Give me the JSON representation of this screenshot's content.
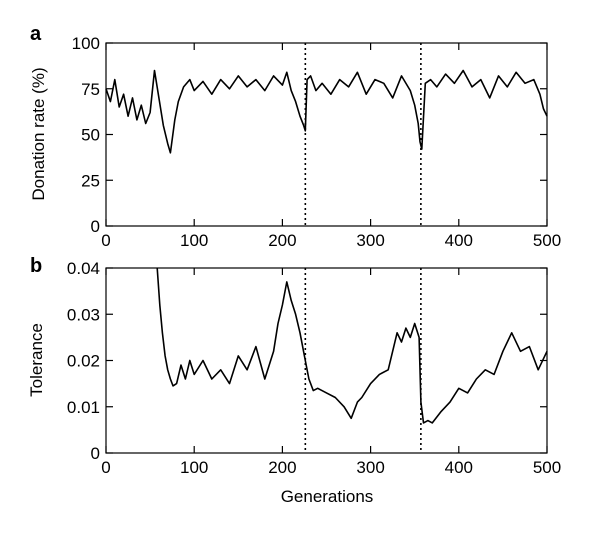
{
  "chart_data": [
    {
      "type": "line",
      "panel": "a",
      "xlabel": "",
      "ylabel": "Donation rate (%)",
      "xlim": [
        0,
        500
      ],
      "ylim": [
        0,
        100
      ],
      "xticks": [
        0,
        100,
        200,
        300,
        400,
        500
      ],
      "yticks": [
        0,
        25,
        50,
        75,
        100
      ],
      "vlines": [
        226,
        357
      ],
      "grid": false,
      "series": [
        {
          "x": [
            0,
            5,
            10,
            15,
            20,
            25,
            30,
            35,
            40,
            45,
            50,
            55,
            60,
            65,
            70,
            73,
            78,
            82,
            88,
            95,
            100,
            110,
            120,
            130,
            140,
            150,
            160,
            170,
            180,
            190,
            200,
            205,
            210,
            215,
            220,
            224,
            226,
            228,
            232,
            238,
            245,
            255,
            265,
            275,
            285,
            295,
            305,
            315,
            325,
            335,
            345,
            350,
            354,
            356,
            358,
            362,
            368,
            375,
            385,
            395,
            405,
            415,
            425,
            435,
            445,
            455,
            465,
            475,
            485,
            492,
            496,
            500
          ],
          "y": [
            75,
            68,
            80,
            65,
            72,
            60,
            70,
            58,
            66,
            56,
            62,
            85,
            70,
            55,
            45,
            40,
            58,
            68,
            76,
            80,
            74,
            79,
            72,
            80,
            75,
            82,
            76,
            80,
            74,
            82,
            77,
            84,
            74,
            68,
            60,
            55,
            52,
            80,
            82,
            74,
            78,
            72,
            80,
            76,
            84,
            72,
            80,
            78,
            70,
            82,
            74,
            66,
            56,
            46,
            42,
            78,
            80,
            76,
            83,
            78,
            85,
            76,
            80,
            70,
            82,
            76,
            84,
            78,
            80,
            72,
            64,
            60
          ]
        }
      ]
    },
    {
      "type": "line",
      "panel": "b",
      "xlabel": "Generations",
      "ylabel": "Tolerance",
      "xlim": [
        0,
        500
      ],
      "ylim": [
        0,
        0.04
      ],
      "xticks": [
        0,
        100,
        200,
        300,
        400,
        500
      ],
      "yticks": [
        0,
        0.01,
        0.02,
        0.03,
        0.04
      ],
      "vlines": [
        226,
        357
      ],
      "grid": false,
      "series": [
        {
          "x": [
            58,
            61,
            64,
            67,
            70,
            73,
            76,
            80,
            85,
            90,
            95,
            100,
            110,
            120,
            130,
            140,
            150,
            160,
            170,
            180,
            190,
            195,
            200,
            205,
            210,
            215,
            220,
            226,
            230,
            235,
            240,
            250,
            260,
            270,
            278,
            285,
            290,
            300,
            310,
            320,
            330,
            335,
            340,
            345,
            350,
            355,
            357,
            360,
            365,
            370,
            380,
            390,
            400,
            410,
            420,
            430,
            440,
            450,
            460,
            470,
            480,
            490,
            500
          ],
          "y": [
            0.04,
            0.032,
            0.026,
            0.021,
            0.018,
            0.016,
            0.0145,
            0.015,
            0.019,
            0.016,
            0.02,
            0.017,
            0.02,
            0.016,
            0.018,
            0.015,
            0.021,
            0.018,
            0.023,
            0.016,
            0.022,
            0.028,
            0.032,
            0.037,
            0.033,
            0.03,
            0.026,
            0.02,
            0.016,
            0.0135,
            0.014,
            0.013,
            0.012,
            0.01,
            0.0075,
            0.011,
            0.012,
            0.015,
            0.017,
            0.018,
            0.026,
            0.024,
            0.027,
            0.025,
            0.028,
            0.025,
            0.011,
            0.0065,
            0.007,
            0.0065,
            0.009,
            0.011,
            0.014,
            0.013,
            0.016,
            0.018,
            0.017,
            0.022,
            0.026,
            0.022,
            0.023,
            0.018,
            0.022
          ]
        }
      ]
    }
  ]
}
